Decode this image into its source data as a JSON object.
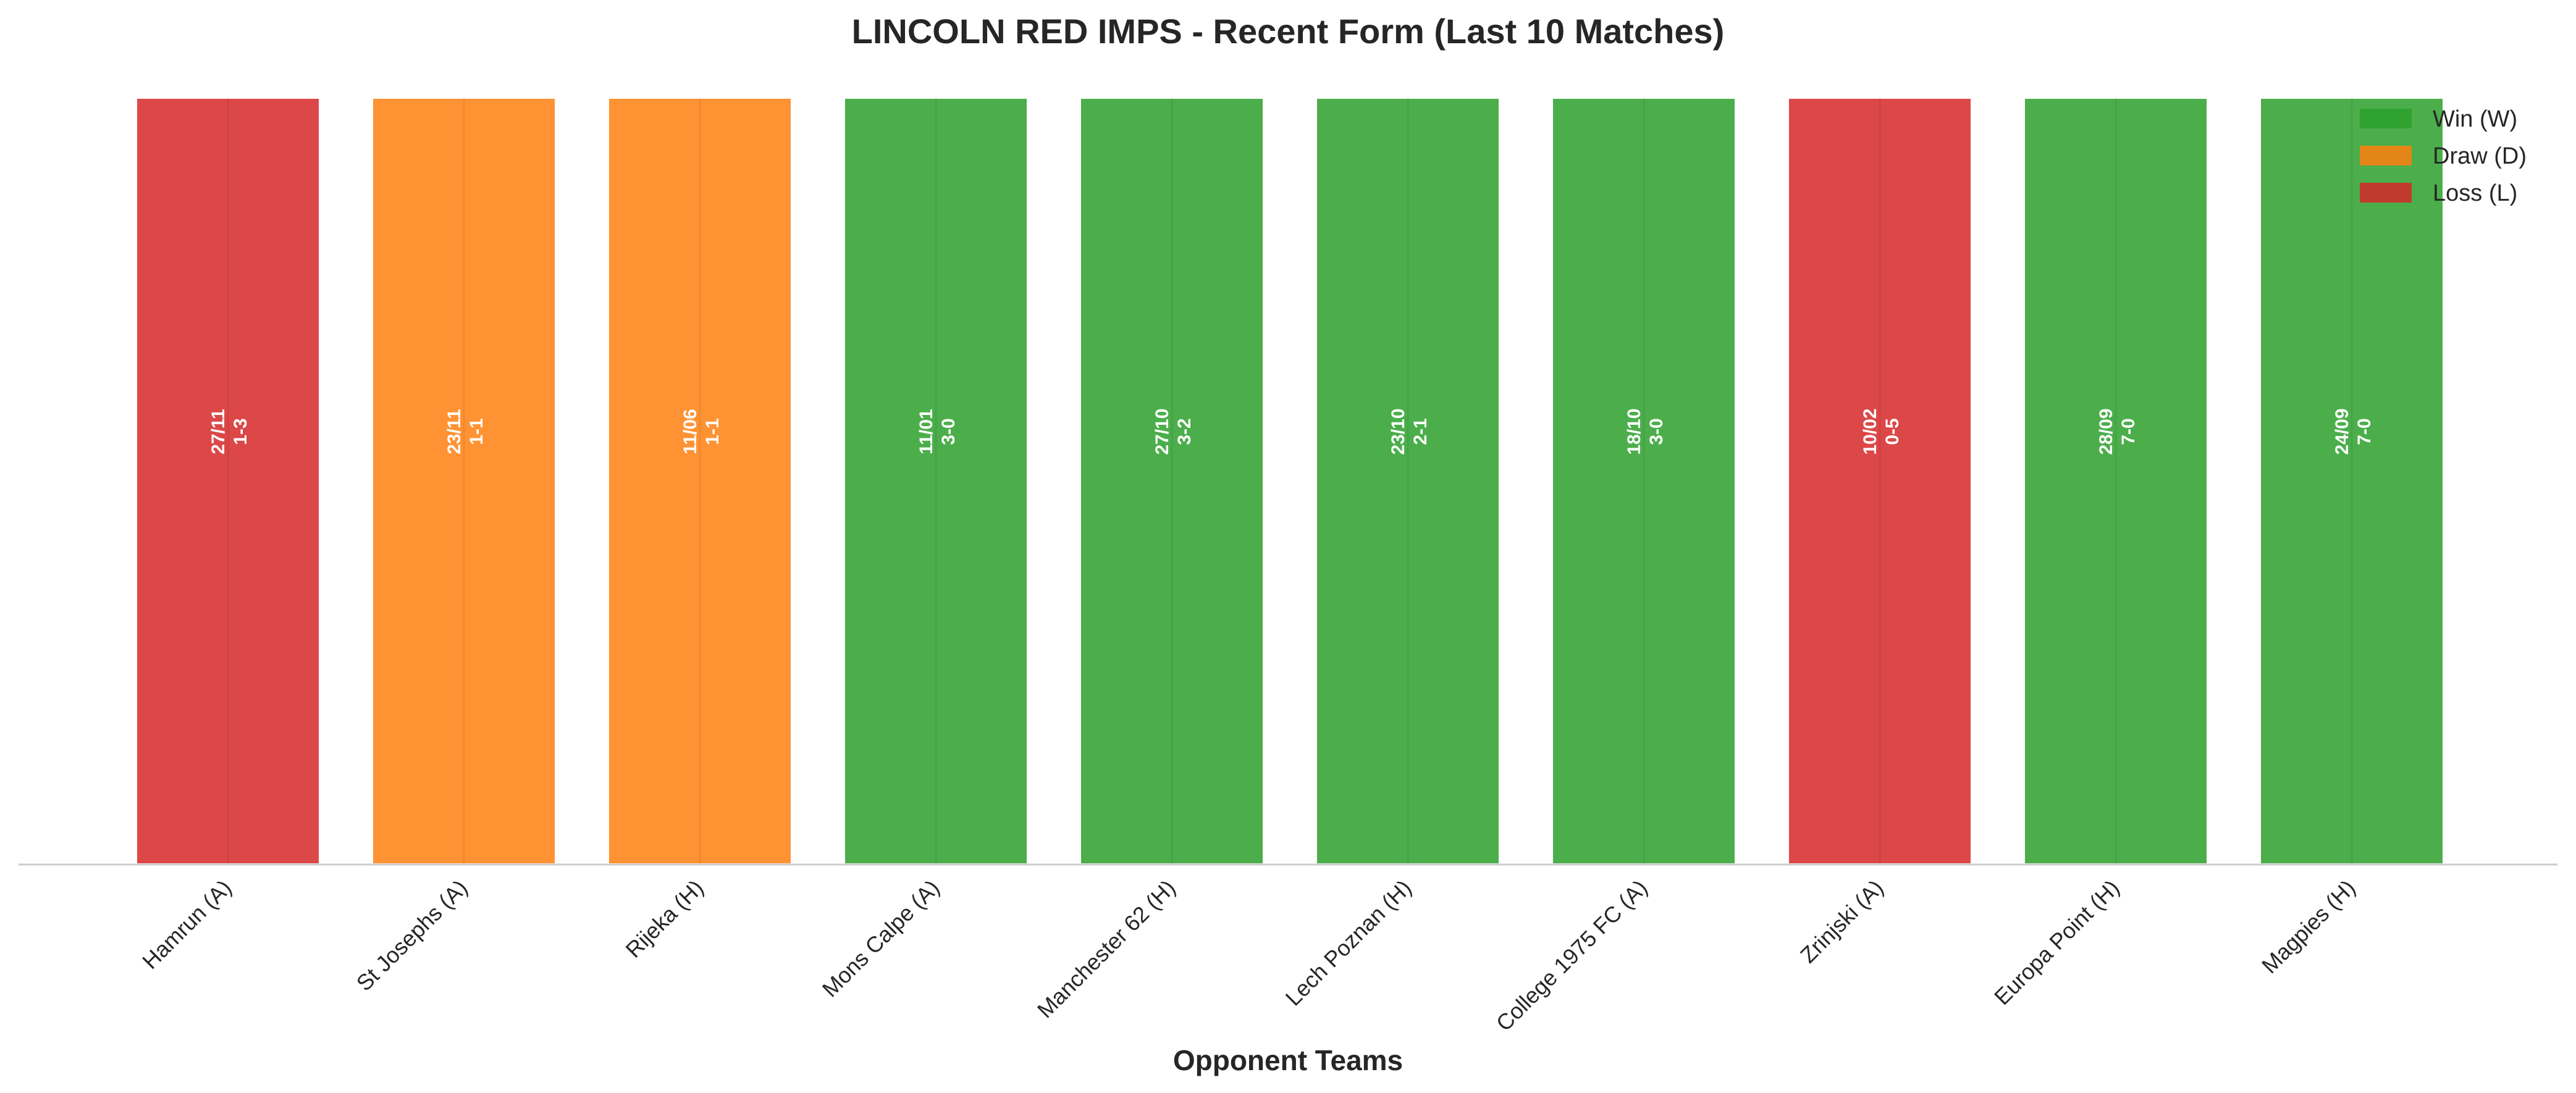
{
  "chart_data": {
    "type": "bar",
    "title": "LINCOLN RED IMPS - Recent Form (Last 10 Matches)",
    "xlabel": "Opponent Teams",
    "ylabel": "",
    "ylim": [
      0,
      1
    ],
    "grid": false,
    "legend_position": "top-right",
    "categories": [
      "Hamrun (A)",
      "St Josephs (A)",
      "Rijeka (H)",
      "Mons Calpe (A)",
      "Manchester 62 (H)",
      "Lech Poznan (H)",
      "College 1975 FC (A)",
      "Zrinjski (A)",
      "Europa Point (H)",
      "Magpies (H)"
    ],
    "values": [
      1,
      1,
      1,
      1,
      1,
      1,
      1,
      1,
      1,
      1
    ],
    "results": [
      "L",
      "D",
      "D",
      "W",
      "W",
      "W",
      "W",
      "L",
      "W",
      "W"
    ],
    "dates": [
      "27/11",
      "23/11",
      "11/06",
      "11/01",
      "27/10",
      "23/10",
      "18/10",
      "10/02",
      "28/09",
      "24/09"
    ],
    "scores": [
      "1-3",
      "1-1",
      "1-1",
      "3-0",
      "3-2",
      "2-1",
      "3-0",
      "0-5",
      "7-0",
      "7-0"
    ],
    "colors": {
      "W": "#2ca02c",
      "D": "#ff7f0e",
      "L": "#d62728"
    },
    "legend": [
      {
        "key": "W",
        "label": "Win (W)"
      },
      {
        "key": "D",
        "label": "Draw (D)"
      },
      {
        "key": "L",
        "label": "Loss (L)"
      }
    ]
  }
}
